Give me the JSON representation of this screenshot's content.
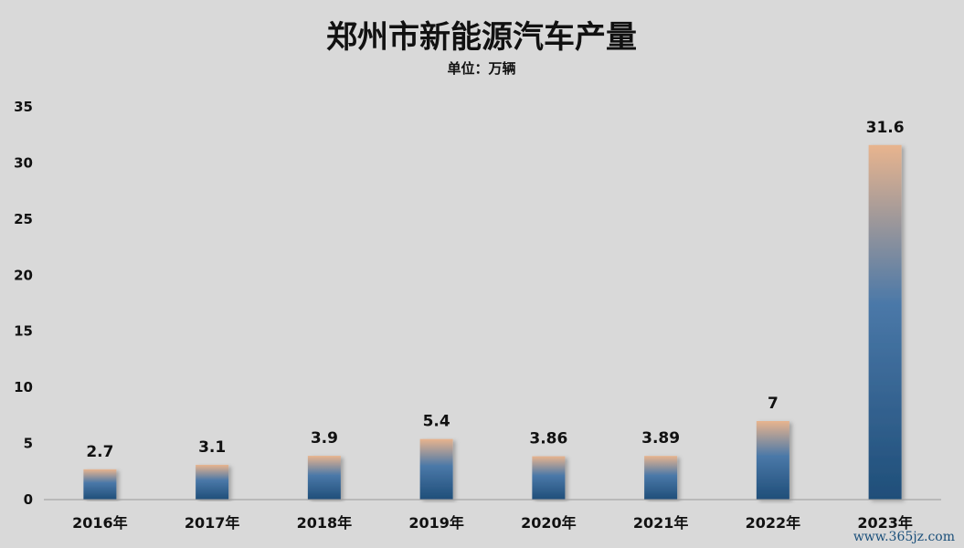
{
  "chart_data": {
    "type": "bar",
    "title": "郑州市新能源汽车产量",
    "subtitle": "单位：万辆",
    "categories": [
      "2016年",
      "2017年",
      "2018年",
      "2019年",
      "2020年",
      "2021年",
      "2022年",
      "2023年"
    ],
    "values": [
      2.7,
      3.1,
      3.9,
      5.4,
      3.86,
      3.89,
      7,
      31.6
    ],
    "data_labels": [
      "2.7",
      "3.1",
      "3.9",
      "5.4",
      "3.86",
      "3.89",
      "7",
      "31.6"
    ],
    "ylim": [
      0,
      35
    ],
    "yticks": [
      "0",
      "5",
      "10",
      "15",
      "20",
      "25",
      "30",
      "35"
    ],
    "ytick_values": [
      0,
      5,
      10,
      15,
      20,
      25,
      30,
      35
    ],
    "grid": false,
    "legend": "none",
    "colors": {
      "bar_bottom": "#1f4e79",
      "bar_mid": "#4a78a8",
      "bar_top": "#e8b48e",
      "background": "#d9d9d9",
      "axis": "#999999"
    }
  },
  "watermark": "www.365jz.com"
}
